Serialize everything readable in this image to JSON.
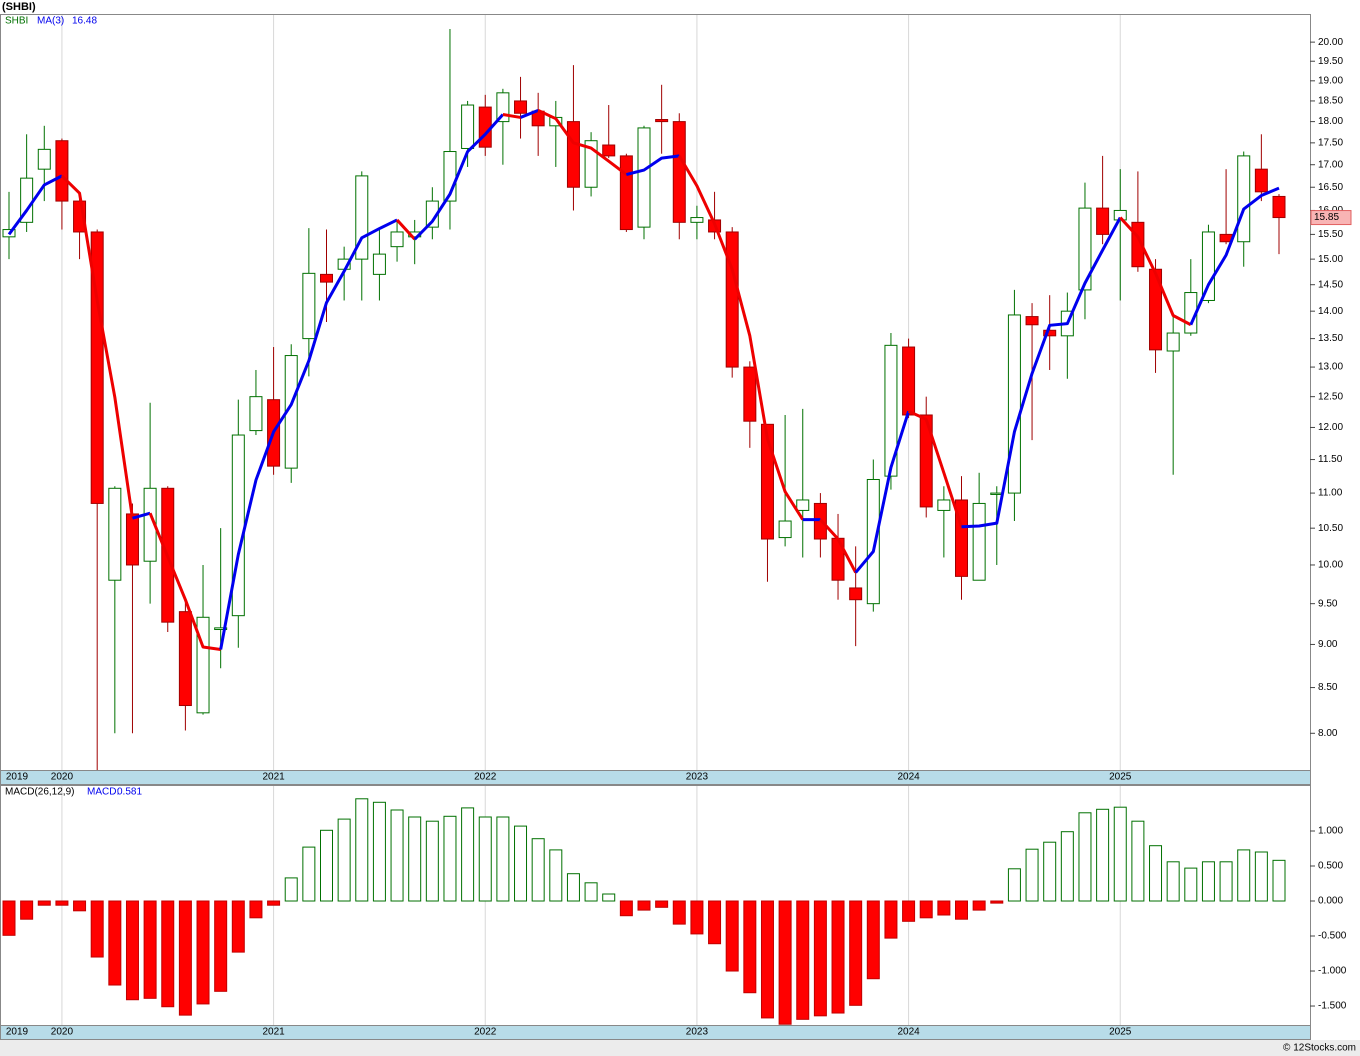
{
  "chart_data": [
    {
      "type": "candlestick",
      "title": "(SHBI)",
      "ticker": "SHBI",
      "categories": [
        "2019",
        null,
        null,
        "2020",
        null,
        null,
        null,
        null,
        null,
        null,
        null,
        null,
        null,
        null,
        null,
        "2021",
        null,
        null,
        null,
        null,
        null,
        null,
        null,
        null,
        null,
        null,
        null,
        "2022",
        null,
        null,
        null,
        null,
        null,
        null,
        null,
        null,
        null,
        null,
        null,
        "2023",
        null,
        null,
        null,
        null,
        null,
        null,
        null,
        null,
        null,
        null,
        null,
        "2024",
        null,
        null,
        null,
        null,
        null,
        null,
        null,
        null,
        null,
        null,
        null,
        "2025",
        null,
        null,
        null,
        null,
        null,
        null,
        null,
        null,
        null
      ],
      "open": [
        15.45,
        15.75,
        16.9,
        17.55,
        16.2,
        15.55,
        9.8,
        10.7,
        10.05,
        11.07,
        9.4,
        8.22,
        9.18,
        9.35,
        11.95,
        12.45,
        11.37,
        13.5,
        14.7,
        14.8,
        15.0,
        14.7,
        15.25,
        15.45,
        15.65,
        16.2,
        17.37,
        18.35,
        18.0,
        18.5,
        18.25,
        17.9,
        18.0,
        16.5,
        17.45,
        17.2,
        15.65,
        18.05,
        18.0,
        15.75,
        15.8,
        15.55,
        13.0,
        12.05,
        10.37,
        10.75,
        10.85,
        10.36,
        9.7,
        9.5,
        11.25,
        13.35,
        12.2,
        10.75,
        10.9,
        9.8,
        10.98,
        11.0,
        13.9,
        13.65,
        13.55,
        14.4,
        16.05,
        15.8,
        15.75,
        14.8,
        13.28,
        13.6,
        14.2,
        15.5,
        15.35,
        16.9,
        16.3
      ],
      "high": [
        16.4,
        17.7,
        17.9,
        17.6,
        16.4,
        15.6,
        11.1,
        10.85,
        12.4,
        11.1,
        9.55,
        10.0,
        10.5,
        12.45,
        12.95,
        13.35,
        13.4,
        15.63,
        15.6,
        15.25,
        16.85,
        15.6,
        15.78,
        15.8,
        16.5,
        20.35,
        18.5,
        18.65,
        18.8,
        19.1,
        18.7,
        18.5,
        19.4,
        17.75,
        18.4,
        17.25,
        17.9,
        18.9,
        18.2,
        16.1,
        16.4,
        15.65,
        13.1,
        12.05,
        12.2,
        12.3,
        11.0,
        10.7,
        10.25,
        11.5,
        13.6,
        13.5,
        12.5,
        11.1,
        11.25,
        11.3,
        11.1,
        14.4,
        14.15,
        14.3,
        14.35,
        16.6,
        17.2,
        16.9,
        16.85,
        15.0,
        13.95,
        15.0,
        15.7,
        16.9,
        17.3,
        17.7,
        16.35
      ],
      "low": [
        15.0,
        15.55,
        16.2,
        15.6,
        15.0,
        7.62,
        8.0,
        8.0,
        9.5,
        9.15,
        8.03,
        8.2,
        8.72,
        8.96,
        11.88,
        11.27,
        11.15,
        12.84,
        13.8,
        14.2,
        14.2,
        14.2,
        14.95,
        14.9,
        15.4,
        15.6,
        16.95,
        17.2,
        17.0,
        17.6,
        17.2,
        16.95,
        16.0,
        16.3,
        17.15,
        15.55,
        15.4,
        17.25,
        15.4,
        15.4,
        15.4,
        12.82,
        11.68,
        9.78,
        10.25,
        10.1,
        10.1,
        9.55,
        8.98,
        9.4,
        11.05,
        12.15,
        10.65,
        10.1,
        9.55,
        9.8,
        10.0,
        10.6,
        11.8,
        12.95,
        12.8,
        13.85,
        15.3,
        14.2,
        14.75,
        12.9,
        11.27,
        13.55,
        14.15,
        15.3,
        14.85,
        16.2,
        15.1
      ],
      "close": [
        15.6,
        16.7,
        17.35,
        16.2,
        15.55,
        10.85,
        11.07,
        10.0,
        11.07,
        9.27,
        8.3,
        9.33,
        9.2,
        11.88,
        12.5,
        11.4,
        13.2,
        14.72,
        14.55,
        15.0,
        16.75,
        15.1,
        15.55,
        15.55,
        16.2,
        17.3,
        18.4,
        17.4,
        18.7,
        18.2,
        17.9,
        18.1,
        16.5,
        17.55,
        17.2,
        15.6,
        17.85,
        18.0,
        15.75,
        15.85,
        15.55,
        13.0,
        12.1,
        10.35,
        10.6,
        10.9,
        10.35,
        9.8,
        9.55,
        11.2,
        13.38,
        12.2,
        10.8,
        10.9,
        9.85,
        10.85,
        11.0,
        13.93,
        13.75,
        13.55,
        14.0,
        16.05,
        15.5,
        16.0,
        14.85,
        13.3,
        13.6,
        14.35,
        15.55,
        15.35,
        17.2,
        16.4,
        15.85
      ],
      "up_color": "#007000",
      "down_color": "#ff0000",
      "series": [
        {
          "name": "MA(3)",
          "up_color": "#0000ee",
          "down_color": "#ee0000",
          "values": [
            15.5,
            16.0,
            16.55,
            16.75,
            16.37,
            14.2,
            12.49,
            10.64,
            10.71,
            10.11,
            9.55,
            8.97,
            8.94,
            10.14,
            11.19,
            11.93,
            12.37,
            13.11,
            14.16,
            14.76,
            15.43,
            15.62,
            15.8,
            15.4,
            15.77,
            16.35,
            17.3,
            17.7,
            18.17,
            18.1,
            18.27,
            18.07,
            17.5,
            17.38,
            17.08,
            16.78,
            16.88,
            17.15,
            17.2,
            16.53,
            15.72,
            14.8,
            13.55,
            11.82,
            11.02,
            10.62,
            10.62,
            10.35,
            9.9,
            10.18,
            11.38,
            12.26,
            12.13,
            11.3,
            10.52,
            10.53,
            10.57,
            11.93,
            12.89,
            13.74,
            13.77,
            14.53,
            15.18,
            15.85,
            15.45,
            14.72,
            13.92,
            13.75,
            14.5,
            15.08,
            16.03,
            16.32,
            16.48
          ]
        }
      ],
      "ylim": [
        7.62,
        20.76
      ],
      "log_scale": true,
      "yticks": [
        {
          "value": 8,
          "label": "8.00"
        },
        {
          "value": 8.5,
          "label": "8.50"
        },
        {
          "value": 9,
          "label": "9.00"
        },
        {
          "value": 9.5,
          "label": "9.50"
        },
        {
          "value": 10,
          "label": "10.00"
        },
        {
          "value": 10.5,
          "label": "10.50"
        },
        {
          "value": 11,
          "label": "11.00"
        },
        {
          "value": 11.5,
          "label": "11.50"
        },
        {
          "value": 12,
          "label": "12.00"
        },
        {
          "value": 12.5,
          "label": "12.50"
        },
        {
          "value": 13,
          "label": "13.00"
        },
        {
          "value": 13.5,
          "label": "13.50"
        },
        {
          "value": 14,
          "label": "14.00"
        },
        {
          "value": 14.5,
          "label": "14.50"
        },
        {
          "value": 15,
          "label": "15.00"
        },
        {
          "value": 15.5,
          "label": "15.50"
        },
        {
          "value": 16,
          "label": "16.00"
        },
        {
          "value": 16.5,
          "label": "16.50"
        },
        {
          "value": 17,
          "label": "17.00"
        },
        {
          "value": 17.5,
          "label": "17.50"
        },
        {
          "value": 18,
          "label": "18.00"
        },
        {
          "value": 18.5,
          "label": "18.50"
        },
        {
          "value": 19,
          "label": "19.00"
        },
        {
          "value": 19.5,
          "label": "19.50"
        },
        {
          "value": 20,
          "label": "20.00"
        }
      ]
    },
    {
      "type": "bar",
      "title": "MACD(26,12,9)",
      "series": [
        {
          "name": "MACD:",
          "pos_color": "#007000",
          "neg_color": "#ff0000",
          "values": [
            -0.49,
            -0.26,
            -0.06,
            -0.06,
            -0.14,
            -0.8,
            -1.2,
            -1.41,
            -1.39,
            -1.51,
            -1.63,
            -1.47,
            -1.29,
            -0.73,
            -0.24,
            -0.06,
            0.33,
            0.77,
            1.01,
            1.17,
            1.46,
            1.41,
            1.3,
            1.2,
            1.14,
            1.21,
            1.33,
            1.2,
            1.2,
            1.07,
            0.89,
            0.73,
            0.39,
            0.26,
            0.1,
            -0.21,
            -0.13,
            -0.09,
            -0.33,
            -0.47,
            -0.61,
            -1.0,
            -1.31,
            -1.67,
            -1.76,
            -1.69,
            -1.64,
            -1.6,
            -1.49,
            -1.11,
            -0.53,
            -0.29,
            -0.24,
            -0.2,
            -0.26,
            -0.13,
            -0.03,
            0.46,
            0.74,
            0.84,
            0.99,
            1.26,
            1.31,
            1.34,
            1.14,
            0.79,
            0.56,
            0.47,
            0.56,
            0.56,
            0.73,
            0.7,
            0.581
          ]
        }
      ],
      "ylim": [
        -1.771,
        1.657
      ],
      "yticks": [
        {
          "value": 1,
          "label": "1.000"
        },
        {
          "value": 0.5,
          "label": "0.500"
        },
        {
          "value": 0,
          "label": "0.000"
        },
        {
          "value": -0.5,
          "label": "-0.500"
        },
        {
          "value": -1,
          "label": "-1.000"
        },
        {
          "value": -1.5,
          "label": "-1.500"
        }
      ]
    }
  ],
  "footer": "© 12Stocks.com"
}
